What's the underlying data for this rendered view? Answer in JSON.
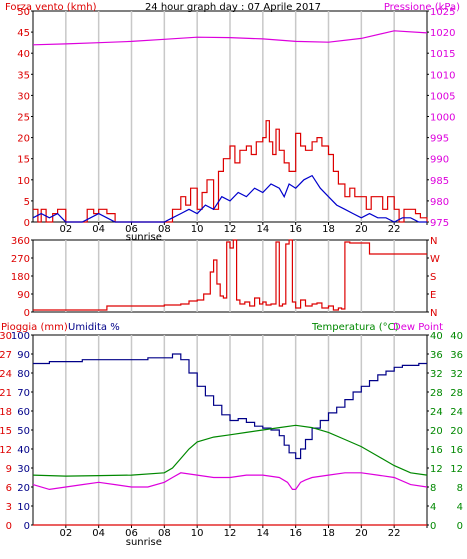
{
  "title": "24 hour graph day : 07 Aprile 2017",
  "colors": {
    "wind_avg": "#0000cc",
    "wind_gust": "#dd0000",
    "pressure": "#dd00dd",
    "direction": "#dd0000",
    "humidity": "#000088",
    "temperature": "#008800",
    "dew_point": "#dd00dd",
    "rain": "#dd0000",
    "grid": "#c8c8c8",
    "axis": "#000000"
  },
  "chart_data": [
    {
      "type": "line",
      "name": "wind_pressure",
      "title": "24 hour graph day : 07 Aprile 2017",
      "left_label": "Forza vento (kmh)",
      "right_label": "Pressione (kPa)",
      "x_ticks": [
        "02",
        "04",
        "06",
        "08",
        "10",
        "12",
        "14",
        "16",
        "18",
        "20",
        "22",
        ""
      ],
      "sunrise_label": "sunrise",
      "sunrise_hour": 6.75,
      "left_ticks": [
        "0",
        "5",
        "10",
        "15",
        "20",
        "25",
        "30",
        "35",
        "40",
        "45",
        "50"
      ],
      "right_ticks": [
        "975",
        "980",
        "985",
        "990",
        "995",
        "1000",
        "1005",
        "1010",
        "1015",
        "1020",
        "1025"
      ],
      "ylim_left": [
        0,
        50
      ],
      "ylim_right": [
        975,
        1025
      ],
      "gust": {
        "x": [
          0,
          0.3,
          0.5,
          0.8,
          1.2,
          1.5,
          2,
          3,
          3.3,
          3.7,
          4,
          4.5,
          5,
          7,
          8,
          8.5,
          9,
          9.3,
          9.6,
          10,
          10.3,
          10.6,
          11,
          11.3,
          11.6,
          12,
          12.3,
          12.6,
          13,
          13.3,
          13.6,
          14,
          14.2,
          14.4,
          14.6,
          14.8,
          15,
          15.3,
          15.6,
          16,
          16.3,
          16.6,
          17,
          17.3,
          17.6,
          18,
          18.3,
          18.6,
          19,
          19.3,
          19.6,
          20,
          20.3,
          20.6,
          21,
          21.3,
          21.6,
          22,
          22.3,
          22.6,
          23,
          23.3,
          23.6,
          24
        ],
        "y": [
          3,
          0,
          3,
          0,
          2,
          3,
          0,
          0,
          3,
          2,
          3,
          2,
          0,
          0,
          0,
          3,
          6,
          4,
          8,
          3,
          7,
          10,
          3,
          12,
          15,
          18,
          14,
          17,
          18,
          16,
          19,
          20,
          24,
          19,
          16,
          22,
          17,
          14,
          12,
          21,
          18,
          17,
          19,
          20,
          18,
          16,
          12,
          9,
          6,
          8,
          6,
          6,
          3,
          6,
          6,
          3,
          6,
          3,
          0,
          3,
          3,
          2,
          1,
          0
        ]
      },
      "avg": {
        "x": [
          0,
          0.5,
          1,
          1.5,
          2,
          3,
          3.5,
          4,
          4.5,
          5,
          7,
          8,
          8.5,
          9,
          9.5,
          10,
          10.5,
          11,
          11.5,
          12,
          12.5,
          13,
          13.5,
          14,
          14.5,
          15,
          15.3,
          15.6,
          16,
          16.5,
          17,
          17.5,
          18,
          18.5,
          19,
          19.5,
          20,
          20.5,
          21,
          21.5,
          22,
          22.5,
          23,
          23.5,
          24
        ],
        "y": [
          1,
          2,
          1,
          2,
          0,
          0,
          1,
          2,
          1,
          0,
          0,
          0,
          1,
          2,
          3,
          2,
          4,
          3,
          6,
          5,
          7,
          6,
          8,
          7,
          9,
          8,
          6,
          9,
          8,
          10,
          11,
          8,
          6,
          4,
          3,
          2,
          1,
          2,
          1,
          1,
          0,
          1,
          1,
          0,
          0
        ]
      },
      "pressure": {
        "x": [
          0,
          2,
          4,
          6,
          8,
          10,
          12,
          14,
          16,
          18,
          20,
          22,
          24
        ],
        "y": [
          1017,
          1017.2,
          1017.5,
          1017.8,
          1018.3,
          1018.8,
          1018.7,
          1018.4,
          1017.8,
          1017.6,
          1018.5,
          1020.3,
          1019.8
        ]
      }
    },
    {
      "type": "line",
      "name": "wind_direction",
      "left_ticks": [
        "0",
        "90",
        "180",
        "270",
        "360"
      ],
      "right_ticks": [
        "N",
        "E",
        "S",
        "W",
        "N"
      ],
      "ylim": [
        0,
        360
      ],
      "x": [
        0,
        2,
        4,
        4.5,
        6,
        8,
        9,
        9.5,
        10,
        10.4,
        10.8,
        11,
        11.2,
        11.4,
        11.6,
        11.8,
        12,
        12.2,
        12.4,
        12.6,
        12.9,
        13.2,
        13.5,
        13.8,
        14,
        14.2,
        14.5,
        14.8,
        15,
        15.2,
        15.4,
        15.6,
        15.8,
        16,
        16.3,
        16.6,
        17,
        17.3,
        17.6,
        18,
        18.3,
        18.6,
        18.8,
        19,
        19.3,
        20,
        20.5,
        22,
        24
      ],
      "y": [
        10,
        10,
        10,
        30,
        30,
        35,
        40,
        55,
        60,
        90,
        200,
        260,
        140,
        80,
        70,
        350,
        320,
        360,
        60,
        40,
        50,
        30,
        70,
        40,
        50,
        35,
        40,
        350,
        30,
        40,
        340,
        360,
        50,
        20,
        60,
        30,
        40,
        45,
        20,
        30,
        10,
        20,
        15,
        350,
        345,
        345,
        290,
        290,
        290
      ]
    },
    {
      "type": "line",
      "name": "temp_humidity",
      "left_label": "Pioggia (mm)",
      "left_label2": "Umidita %",
      "right_label": "Temperatura (°C)",
      "right_label2": "Dew Point",
      "rain_ticks": [
        "0",
        "3",
        "6",
        "9",
        "12",
        "15",
        "18",
        "21",
        "24",
        "27",
        "30"
      ],
      "humidity_ticks": [
        "0",
        "10",
        "20",
        "30",
        "40",
        "50",
        "60",
        "70",
        "80",
        "90",
        "100"
      ],
      "temp_ticks": [
        "0",
        "4",
        "8",
        "12",
        "16",
        "20",
        "24",
        "28",
        "32",
        "36",
        "40"
      ],
      "ylim_left": [
        0,
        100
      ],
      "ylim_right": [
        0,
        40
      ],
      "humidity": {
        "x": [
          0,
          1,
          2,
          3,
          4,
          5,
          6,
          7,
          8,
          8.5,
          9,
          9.5,
          10,
          10.5,
          11,
          11.5,
          12,
          12.5,
          13,
          13.5,
          14,
          14.5,
          15,
          15.3,
          15.6,
          16,
          16.3,
          16.6,
          17,
          17.5,
          18,
          18.5,
          19,
          19.5,
          20,
          20.5,
          21,
          21.5,
          22,
          22.5,
          23,
          23.5,
          24
        ],
        "y": [
          85,
          86,
          86,
          87,
          87,
          87,
          87,
          88,
          88,
          90,
          87,
          80,
          73,
          68,
          63,
          58,
          55,
          56,
          54,
          52,
          51,
          50,
          47,
          42,
          38,
          35,
          40,
          45,
          51,
          55,
          59,
          62,
          66,
          70,
          73,
          76,
          79,
          81,
          83,
          84,
          84,
          85,
          85
        ]
      },
      "temperature": {
        "x": [
          0,
          2,
          4,
          6,
          8,
          8.5,
          9,
          9.5,
          10,
          11,
          12,
          13,
          14,
          15,
          16,
          17,
          18,
          19,
          20,
          21,
          22,
          23,
          24
        ],
        "y": [
          10.5,
          10.3,
          10.4,
          10.5,
          11,
          12,
          14,
          16,
          17.5,
          18.5,
          19,
          19.5,
          20,
          20.5,
          21,
          20.5,
          19.5,
          18,
          16.5,
          14.5,
          12.5,
          11,
          10.5
        ]
      },
      "dew_point": {
        "x": [
          0,
          1,
          2,
          3,
          4,
          5,
          6,
          7,
          8,
          8.5,
          9,
          10,
          11,
          12,
          13,
          14,
          15,
          15.5,
          15.8,
          16,
          16.3,
          16.6,
          17,
          18,
          19,
          20,
          21,
          22,
          23,
          24
        ],
        "y": [
          8.5,
          7.5,
          8,
          8.5,
          9,
          8.5,
          8,
          8,
          9,
          10,
          11,
          10.5,
          10,
          10,
          10.5,
          10.5,
          10,
          9,
          7.5,
          7.5,
          9,
          9.5,
          10,
          10.5,
          11,
          11,
          10.5,
          10,
          8.5,
          8
        ]
      },
      "rain": {
        "x": [
          0,
          24
        ],
        "y": [
          0,
          0
        ]
      },
      "x_ticks": [
        "02",
        "04",
        "06",
        "08",
        "10",
        "12",
        "14",
        "16",
        "18",
        "20",
        "22",
        ""
      ],
      "sunrise_label": "sunrise",
      "sunrise_hour": 6.75
    }
  ]
}
